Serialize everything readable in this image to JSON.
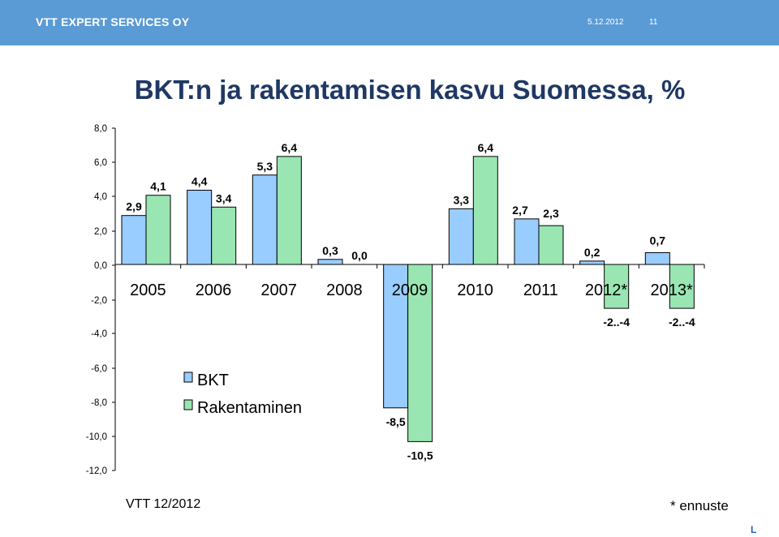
{
  "header": {
    "company": "VTT EXPERT SERVICES OY",
    "date": "5.12.2012",
    "page_number": "11",
    "background_color": "#5b9bd5"
  },
  "title": "BKT:n ja rakentamisen kasvu Suomessa, %",
  "footer": {
    "source": "VTT 12/2012",
    "note": "* ennuste",
    "logo": "L"
  },
  "chart_data": {
    "type": "bar",
    "title": "BKT:n ja rakentamisen kasvu Suomessa, %",
    "xlabel": "",
    "ylabel": "",
    "ylim": [
      -12,
      8
    ],
    "yticks": [
      "8,0",
      "6,0",
      "4,0",
      "2,0",
      "0,0",
      "-2,0",
      "-4,0",
      "-6,0",
      "-8,0",
      "-10,0",
      "-12,0"
    ],
    "categories": [
      "2005",
      "2006",
      "2007",
      "2008",
      "2009",
      "2010",
      "2011",
      "2012*",
      "2013*"
    ],
    "grid": false,
    "legend_position": "bottom-left",
    "series": [
      {
        "name": "BKT",
        "color": "#99ccff",
        "values": [
          2.9,
          4.4,
          5.3,
          0.3,
          -8.5,
          3.3,
          2.7,
          0.2,
          0.7
        ],
        "labels": [
          "2,9",
          "4,4",
          "5,3",
          "0,3",
          "-8,5",
          "3,3",
          "2,7",
          "0,2",
          "0,7"
        ]
      },
      {
        "name": "Rakentaminen",
        "color": "#99e6b3",
        "values": [
          4.1,
          3.4,
          6.4,
          0.0,
          -10.5,
          6.4,
          2.3,
          -2.6,
          -2.6
        ],
        "labels": [
          "4,1",
          "3,4",
          "6,4",
          "0,0",
          "-10,5",
          "6,4",
          "2,3",
          "-2..-4",
          "-2..-4"
        ]
      }
    ]
  }
}
